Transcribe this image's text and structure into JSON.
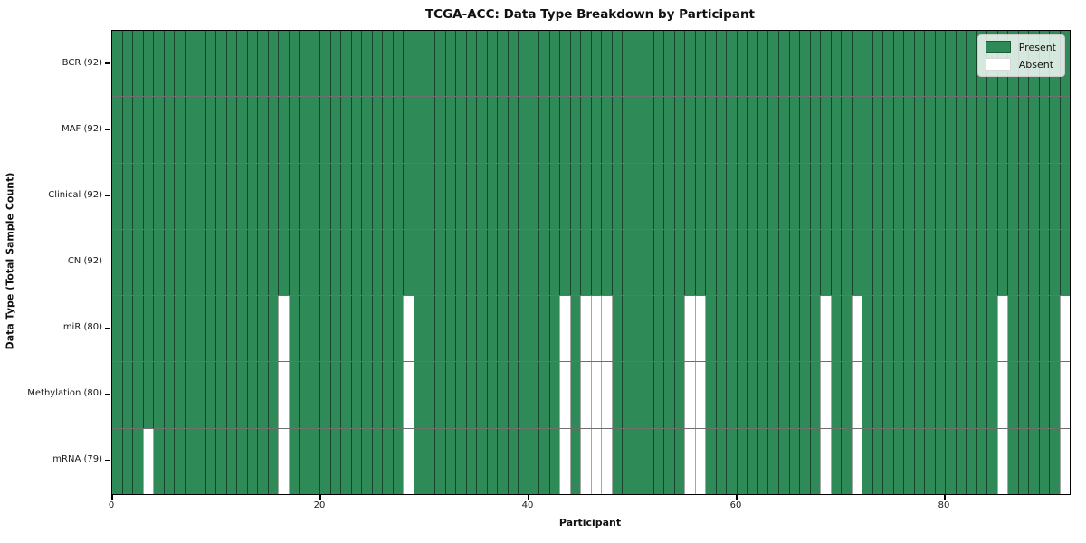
{
  "title": "TCGA-ACC: Data Type Breakdown by Participant",
  "xlabel": "Participant",
  "ylabel": "Data Type (Total Sample Count)",
  "colors": {
    "present": "#2e8b57",
    "absent": "#ffffff"
  },
  "legend": {
    "items": [
      {
        "label": "Present",
        "color": "#2e8b57"
      },
      {
        "label": "Absent",
        "color": "#ffffff"
      }
    ],
    "position": "upper right"
  },
  "chart_data": {
    "type": "heatmap",
    "title": "TCGA-ACC: Data Type Breakdown by Participant",
    "xlabel": "Participant",
    "ylabel": "Data Type (Total Sample Count)",
    "n_participants": 92,
    "x_range": [
      0,
      92
    ],
    "x_ticks": [
      0,
      20,
      40,
      60,
      80
    ],
    "grid": true,
    "legend_position": "upper right",
    "cell_states": [
      "present",
      "absent"
    ],
    "rows": [
      {
        "key": "bcr",
        "label": "BCR (92)",
        "present_count": 92,
        "absent_participants": []
      },
      {
        "key": "maf",
        "label": "MAF (92)",
        "present_count": 92,
        "absent_participants": []
      },
      {
        "key": "clinical",
        "label": "Clinical (92)",
        "present_count": 92,
        "absent_participants": []
      },
      {
        "key": "cn",
        "label": "CN (92)",
        "present_count": 92,
        "absent_participants": []
      },
      {
        "key": "mir",
        "label": "miR (80)",
        "present_count": 80,
        "absent_participants": [
          16,
          28,
          43,
          45,
          46,
          47,
          55,
          56,
          68,
          71,
          85,
          91
        ]
      },
      {
        "key": "methylation",
        "label": "Methylation (80)",
        "present_count": 80,
        "absent_participants": [
          16,
          28,
          43,
          45,
          46,
          47,
          55,
          56,
          68,
          71,
          85,
          91
        ]
      },
      {
        "key": "mrna",
        "label": "mRNA (79)",
        "present_count": 79,
        "absent_participants": [
          3,
          16,
          28,
          43,
          45,
          46,
          47,
          55,
          56,
          68,
          71,
          85,
          91
        ]
      }
    ]
  }
}
